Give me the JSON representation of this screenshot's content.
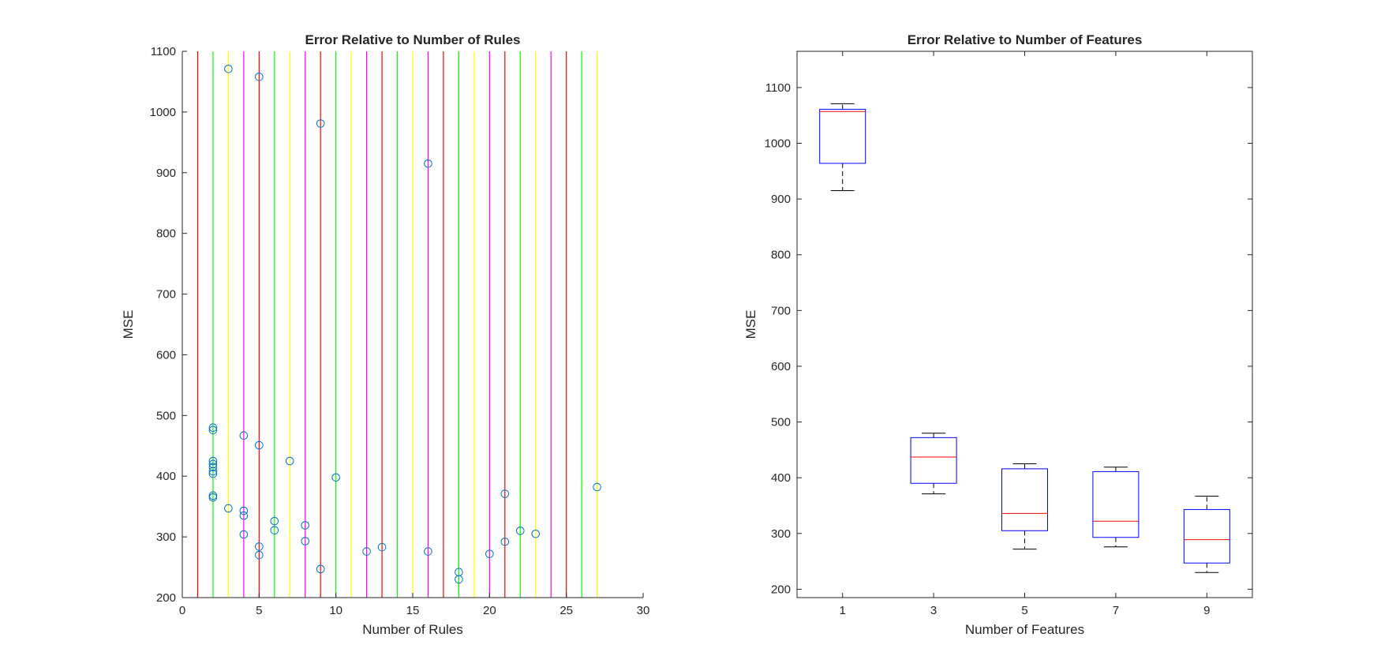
{
  "chart_data": [
    {
      "type": "scatter",
      "title": "Error Relative to Number of Rules",
      "xlabel": "Number of Rules",
      "ylabel": "MSE",
      "xlim": [
        0,
        30
      ],
      "ylim": [
        200,
        1100
      ],
      "xticks": [
        0,
        5,
        10,
        15,
        20,
        25,
        30
      ],
      "yticks": [
        200,
        300,
        400,
        500,
        600,
        700,
        800,
        900,
        1000,
        1100
      ],
      "marker_color": "#0072bd",
      "grid": false,
      "vertical_lines": [
        {
          "x": 1,
          "color": "#ff0000"
        },
        {
          "x": 2,
          "color": "#00ff00"
        },
        {
          "x": 3,
          "color": "#ffff00"
        },
        {
          "x": 4,
          "color": "#ff00ff"
        },
        {
          "x": 5,
          "color": "#ff0000"
        },
        {
          "x": 6,
          "color": "#00ff00"
        },
        {
          "x": 7,
          "color": "#ffff00"
        },
        {
          "x": 8,
          "color": "#ff00ff"
        },
        {
          "x": 9,
          "color": "#ff0000"
        },
        {
          "x": 10,
          "color": "#00ff00"
        },
        {
          "x": 11,
          "color": "#ffff00"
        },
        {
          "x": 12,
          "color": "#ff00ff"
        },
        {
          "x": 13,
          "color": "#ff0000"
        },
        {
          "x": 14,
          "color": "#00ff00"
        },
        {
          "x": 15,
          "color": "#ffff00"
        },
        {
          "x": 16,
          "color": "#ff00ff"
        },
        {
          "x": 17,
          "color": "#ff0000"
        },
        {
          "x": 18,
          "color": "#00ff00"
        },
        {
          "x": 19,
          "color": "#ffff00"
        },
        {
          "x": 20,
          "color": "#ff00ff"
        },
        {
          "x": 21,
          "color": "#ff0000"
        },
        {
          "x": 22,
          "color": "#00ff00"
        },
        {
          "x": 23,
          "color": "#ffff00"
        },
        {
          "x": 24,
          "color": "#ff00ff"
        },
        {
          "x": 25,
          "color": "#ff0000"
        },
        {
          "x": 26,
          "color": "#00ff00"
        },
        {
          "x": 27,
          "color": "#ffff00"
        }
      ],
      "points": [
        {
          "x": 2,
          "y": 480
        },
        {
          "x": 2,
          "y": 476
        },
        {
          "x": 2,
          "y": 425
        },
        {
          "x": 2,
          "y": 420
        },
        {
          "x": 2,
          "y": 415
        },
        {
          "x": 2,
          "y": 408
        },
        {
          "x": 2,
          "y": 404
        },
        {
          "x": 2,
          "y": 368
        },
        {
          "x": 2,
          "y": 365
        },
        {
          "x": 3,
          "y": 1071
        },
        {
          "x": 3,
          "y": 347
        },
        {
          "x": 4,
          "y": 467
        },
        {
          "x": 4,
          "y": 343
        },
        {
          "x": 4,
          "y": 335
        },
        {
          "x": 4,
          "y": 304
        },
        {
          "x": 5,
          "y": 1058
        },
        {
          "x": 5,
          "y": 451
        },
        {
          "x": 5,
          "y": 284
        },
        {
          "x": 5,
          "y": 270
        },
        {
          "x": 6,
          "y": 326
        },
        {
          "x": 6,
          "y": 311
        },
        {
          "x": 7,
          "y": 425
        },
        {
          "x": 8,
          "y": 319
        },
        {
          "x": 8,
          "y": 293
        },
        {
          "x": 9,
          "y": 981
        },
        {
          "x": 9,
          "y": 247
        },
        {
          "x": 10,
          "y": 398
        },
        {
          "x": 12,
          "y": 276
        },
        {
          "x": 13,
          "y": 283
        },
        {
          "x": 16,
          "y": 915
        },
        {
          "x": 16,
          "y": 276
        },
        {
          "x": 18,
          "y": 242
        },
        {
          "x": 18,
          "y": 230
        },
        {
          "x": 20,
          "y": 272
        },
        {
          "x": 21,
          "y": 371
        },
        {
          "x": 21,
          "y": 292
        },
        {
          "x": 22,
          "y": 310
        },
        {
          "x": 23,
          "y": 305
        },
        {
          "x": 27,
          "y": 382
        }
      ]
    },
    {
      "type": "box",
      "title": "Error Relative to Number of Features",
      "xlabel": "Number of Features",
      "ylabel": "MSE",
      "ylim": [
        185,
        1165
      ],
      "yticks": [
        200,
        300,
        400,
        500,
        600,
        700,
        800,
        900,
        1000,
        1100
      ],
      "categories": [
        "1",
        "3",
        "5",
        "7",
        "9"
      ],
      "box_color": "#0000ff",
      "median_color": "#ff0000",
      "whisker_color": "#000000",
      "grid": false,
      "boxes": [
        {
          "category": "1",
          "whisker_low": 915,
          "q1": 964,
          "median": 1057,
          "q3": 1061,
          "whisker_high": 1071
        },
        {
          "category": "3",
          "whisker_low": 371,
          "q1": 390,
          "median": 437,
          "q3": 472,
          "whisker_high": 480
        },
        {
          "category": "5",
          "whisker_low": 272,
          "q1": 305,
          "median": 336,
          "q3": 416,
          "whisker_high": 425
        },
        {
          "category": "7",
          "whisker_low": 276,
          "q1": 293,
          "median": 322,
          "q3": 411,
          "whisker_high": 419
        },
        {
          "category": "9",
          "whisker_low": 230,
          "q1": 247,
          "median": 289,
          "q3": 343,
          "whisker_high": 367
        }
      ]
    }
  ]
}
